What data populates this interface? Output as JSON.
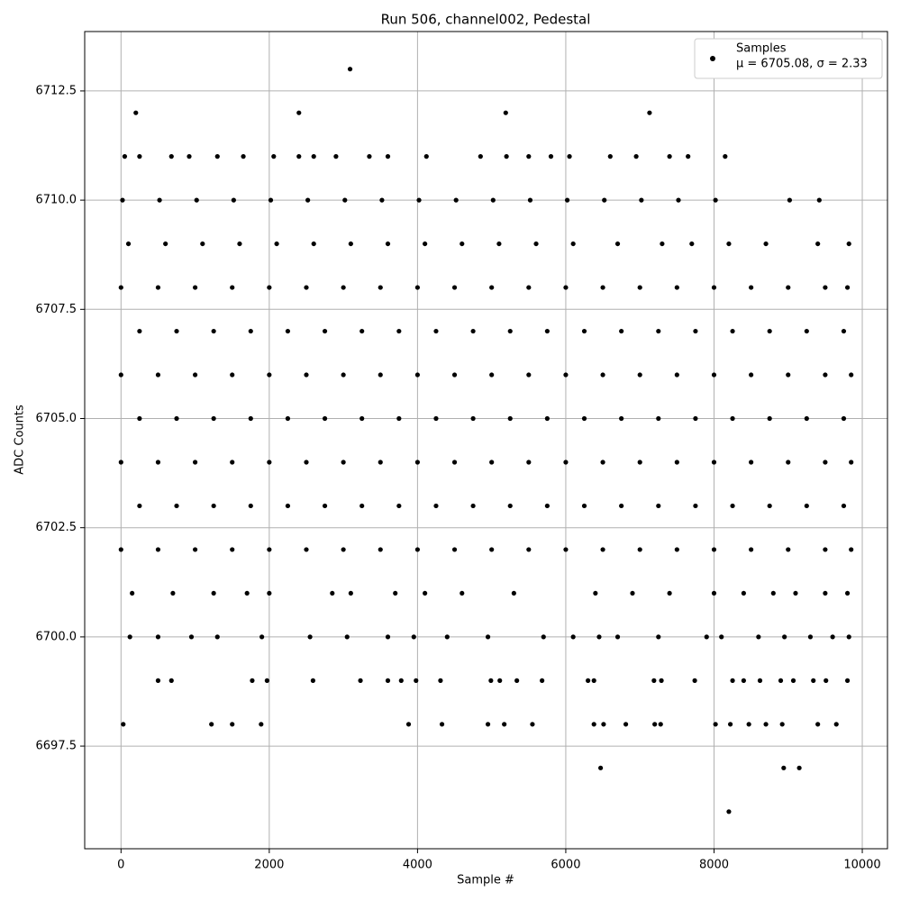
{
  "chart_data": {
    "type": "scatter",
    "title": "Run 506, channel002, Pedestal",
    "xlabel": "Sample #",
    "ylabel": "ADC Counts",
    "xlim": [
      -490,
      10340
    ],
    "ylim": [
      6695.15,
      6713.86
    ],
    "xticks": [
      0,
      2000,
      4000,
      6000,
      8000,
      10000
    ],
    "yticks": [
      6697.5,
      {
        "value": 6700,
        "label": "6700.0"
      },
      6702.5,
      {
        "value": 6705,
        "label": "6705.0"
      },
      6707.5,
      {
        "value": 6710,
        "label": "6710.0"
      },
      6712.5
    ],
    "grid": true,
    "legend": "upper right",
    "legend_note": "μ = 6705.08, σ = 2.33",
    "series": [
      {
        "name": "Samples",
        "color": "#000000",
        "x": [
          0,
          500,
          1000,
          1500,
          2000,
          2500,
          3000,
          3500,
          4000,
          4500,
          5000,
          5500,
          6000,
          6500,
          7000,
          7500,
          8000,
          8500,
          9000,
          9500,
          9800,
          250,
          750,
          1250,
          1750,
          2250,
          2750,
          3250,
          3750,
          4250,
          4750,
          5250,
          5750,
          6250,
          6750,
          7250,
          7750,
          8250,
          8750,
          9250,
          9750,
          0,
          500,
          1000,
          1500,
          2000,
          2500,
          3000,
          3500,
          4000,
          4500,
          5000,
          5500,
          6000,
          6500,
          7000,
          7500,
          8000,
          8500,
          9000,
          9500,
          9850,
          250,
          750,
          1250,
          1750,
          2250,
          2750,
          3250,
          3750,
          4250,
          4750,
          5250,
          5750,
          6250,
          6750,
          7250,
          7750,
          8250,
          8750,
          9250,
          9750,
          0,
          500,
          1000,
          1500,
          2000,
          2500,
          3000,
          3500,
          4000,
          4500,
          5000,
          5500,
          6000,
          6500,
          7000,
          7500,
          8000,
          8500,
          9000,
          9500,
          9850,
          250,
          750,
          1250,
          1750,
          2250,
          2750,
          3250,
          3750,
          4250,
          4750,
          5250,
          5750,
          6250,
          6750,
          7250,
          7750,
          8250,
          8750,
          9250,
          9750,
          0,
          500,
          1000,
          1500,
          2000,
          2500,
          3000,
          3500,
          4000,
          4500,
          5000,
          5500,
          6000,
          6500,
          7000,
          7500,
          8000,
          8500,
          9000,
          9500,
          9850,
          100,
          600,
          1100,
          1600,
          2100,
          2600,
          3100,
          3600,
          4100,
          4600,
          5100,
          5600,
          6100,
          6700,
          7300,
          7700,
          8200,
          8700,
          9400,
          9820,
          20,
          520,
          1020,
          1520,
          2020,
          2520,
          3020,
          3520,
          4020,
          4520,
          5020,
          5520,
          6020,
          6520,
          7020,
          7520,
          8020,
          9020,
          9420,
          150,
          700,
          1250,
          1700,
          2000,
          2850,
          3100,
          3700,
          4100,
          4600,
          5300,
          6400,
          6900,
          7400,
          8000,
          8400,
          8800,
          9100,
          9500,
          9800,
          120,
          500,
          950,
          1300,
          1900,
          2550,
          3050,
          3600,
          3950,
          4400,
          4950,
          5700,
          6100,
          6450,
          6700,
          7250,
          7900,
          8100,
          8600,
          8950,
          9300,
          9600,
          9820,
          50,
          250,
          680,
          920,
          1300,
          1650,
          2060,
          2400,
          2600,
          2900,
          3350,
          3600,
          4120,
          4850,
          5200,
          5500,
          5800,
          6050,
          6600,
          6950,
          7400,
          7650,
          8150,
          500,
          680,
          1770,
          1970,
          2590,
          3230,
          3600,
          3780,
          3980,
          4310,
          4990,
          5110,
          5340,
          5680,
          6300,
          6380,
          7190,
          7290,
          7740,
          8250,
          8400,
          8620,
          8900,
          9070,
          9340,
          9510,
          9800,
          30,
          1220,
          1500,
          1890,
          3880,
          4330,
          4950,
          5170,
          5550,
          6380,
          6510,
          6810,
          7200,
          7280,
          8020,
          8220,
          8470,
          8700,
          8920,
          9400,
          9650,
          3090,
          200,
          2400,
          5190,
          7130,
          8200,
          6470,
          8940,
          9150
        ],
        "values": [
          6708,
          6708,
          6708,
          6708,
          6708,
          6708,
          6708,
          6708,
          6708,
          6708,
          6708,
          6708,
          6708,
          6708,
          6708,
          6708,
          6708,
          6708,
          6708,
          6708,
          6708,
          6707,
          6707,
          6707,
          6707,
          6707,
          6707,
          6707,
          6707,
          6707,
          6707,
          6707,
          6707,
          6707,
          6707,
          6707,
          6707,
          6707,
          6707,
          6707,
          6707,
          6706,
          6706,
          6706,
          6706,
          6706,
          6706,
          6706,
          6706,
          6706,
          6706,
          6706,
          6706,
          6706,
          6706,
          6706,
          6706,
          6706,
          6706,
          6706,
          6706,
          6706,
          6705,
          6705,
          6705,
          6705,
          6705,
          6705,
          6705,
          6705,
          6705,
          6705,
          6705,
          6705,
          6705,
          6705,
          6705,
          6705,
          6705,
          6705,
          6705,
          6705,
          6704,
          6704,
          6704,
          6704,
          6704,
          6704,
          6704,
          6704,
          6704,
          6704,
          6704,
          6704,
          6704,
          6704,
          6704,
          6704,
          6704,
          6704,
          6704,
          6704,
          6704,
          6703,
          6703,
          6703,
          6703,
          6703,
          6703,
          6703,
          6703,
          6703,
          6703,
          6703,
          6703,
          6703,
          6703,
          6703,
          6703,
          6703,
          6703,
          6703,
          6703,
          6702,
          6702,
          6702,
          6702,
          6702,
          6702,
          6702,
          6702,
          6702,
          6702,
          6702,
          6702,
          6702,
          6702,
          6702,
          6702,
          6702,
          6702,
          6702,
          6702,
          6702,
          6709,
          6709,
          6709,
          6709,
          6709,
          6709,
          6709,
          6709,
          6709,
          6709,
          6709,
          6709,
          6709,
          6709,
          6709,
          6709,
          6709,
          6709,
          6709,
          6709,
          6710,
          6710,
          6710,
          6710,
          6710,
          6710,
          6710,
          6710,
          6710,
          6710,
          6710,
          6710,
          6710,
          6710,
          6710,
          6710,
          6710,
          6710,
          6710,
          6701,
          6701,
          6701,
          6701,
          6701,
          6701,
          6701,
          6701,
          6701,
          6701,
          6701,
          6701,
          6701,
          6701,
          6701,
          6701,
          6701,
          6701,
          6701,
          6701,
          6700,
          6700,
          6700,
          6700,
          6700,
          6700,
          6700,
          6700,
          6700,
          6700,
          6700,
          6700,
          6700,
          6700,
          6700,
          6700,
          6700,
          6700,
          6700,
          6700,
          6700,
          6700,
          6700,
          6711,
          6711,
          6711,
          6711,
          6711,
          6711,
          6711,
          6711,
          6711,
          6711,
          6711,
          6711,
          6711,
          6711,
          6711,
          6711,
          6711,
          6711,
          6711,
          6711,
          6711,
          6711,
          6711,
          6699,
          6699,
          6699,
          6699,
          6699,
          6699,
          6699,
          6699,
          6699,
          6699,
          6699,
          6699,
          6699,
          6699,
          6699,
          6699,
          6699,
          6699,
          6699,
          6699,
          6699,
          6699,
          6699,
          6699,
          6699,
          6699,
          6699,
          6698,
          6698,
          6698,
          6698,
          6698,
          6698,
          6698,
          6698,
          6698,
          6698,
          6698,
          6698,
          6698,
          6698,
          6698,
          6698,
          6698,
          6698,
          6698,
          6698,
          6698,
          6713,
          6712,
          6712,
          6712,
          6712,
          6696,
          6697,
          6697,
          6697
        ]
      }
    ]
  }
}
